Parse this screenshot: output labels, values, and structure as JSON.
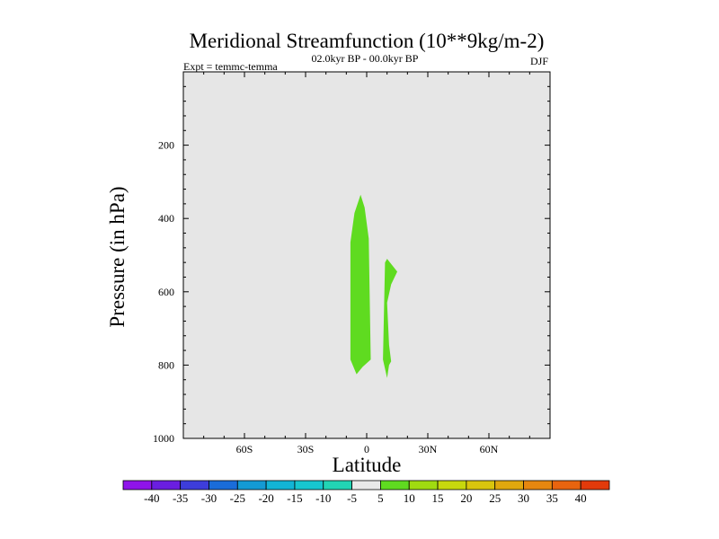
{
  "chart_data": {
    "type": "contour",
    "title": "Meridional Streamfunction (10**9kg/m-2)",
    "subtitle": "02.0kyr BP - 00.0kyr BP",
    "left_label": "Expt = temmc-temma",
    "right_label": "DJF",
    "xlabel": "Latitude",
    "ylabel": "Pressure (in hPa)",
    "xlim": [
      -90,
      90
    ],
    "ylim": [
      1000,
      0
    ],
    "x_ticks": [
      {
        "value": -60,
        "label": "60S"
      },
      {
        "value": -30,
        "label": "30S"
      },
      {
        "value": 0,
        "label": "0"
      },
      {
        "value": 30,
        "label": "30N"
      },
      {
        "value": 60,
        "label": "60N"
      }
    ],
    "y_ticks": [
      {
        "value": 200,
        "label": "200"
      },
      {
        "value": 400,
        "label": "400"
      },
      {
        "value": 600,
        "label": "600"
      },
      {
        "value": 800,
        "label": "800"
      },
      {
        "value": 1000,
        "label": "1000"
      }
    ],
    "background_color": "#e6e6e6",
    "regions": [
      {
        "name": "central-cell",
        "level": "5 to 10",
        "color": "#5fdb20",
        "points": [
          [
            -3,
            335
          ],
          [
            -1,
            370
          ],
          [
            1,
            455
          ],
          [
            2,
            785
          ],
          [
            -2,
            805
          ],
          [
            -5,
            825
          ],
          [
            -8,
            785
          ],
          [
            -8,
            465
          ],
          [
            -6,
            385
          ]
        ]
      },
      {
        "name": "northern-cell",
        "level": "5 to 10",
        "color": "#5fdb20",
        "points": [
          [
            10,
            510
          ],
          [
            15,
            545
          ],
          [
            12,
            580
          ],
          [
            10,
            630
          ],
          [
            11,
            745
          ],
          [
            12,
            790
          ],
          [
            11,
            800
          ],
          [
            10,
            835
          ],
          [
            8,
            785
          ],
          [
            9,
            520
          ]
        ]
      }
    ],
    "colorbar": {
      "labels": [
        "-40",
        "-35",
        "-30",
        "-25",
        "-20",
        "-15",
        "-10",
        "-5",
        "5",
        "10",
        "15",
        "20",
        "25",
        "30",
        "35",
        "40"
      ],
      "colors": [
        "#8f14ea",
        "#6a1ee0",
        "#3d3ddb",
        "#1a6cd9",
        "#149ad4",
        "#12b4d6",
        "#17c6cf",
        "#22d4b4",
        "#e9e9e9",
        "#5fdb20",
        "#a0db10",
        "#c7d80d",
        "#d9c50d",
        "#e0a80e",
        "#e6870f",
        "#e8640f",
        "#e23a0b"
      ]
    }
  }
}
